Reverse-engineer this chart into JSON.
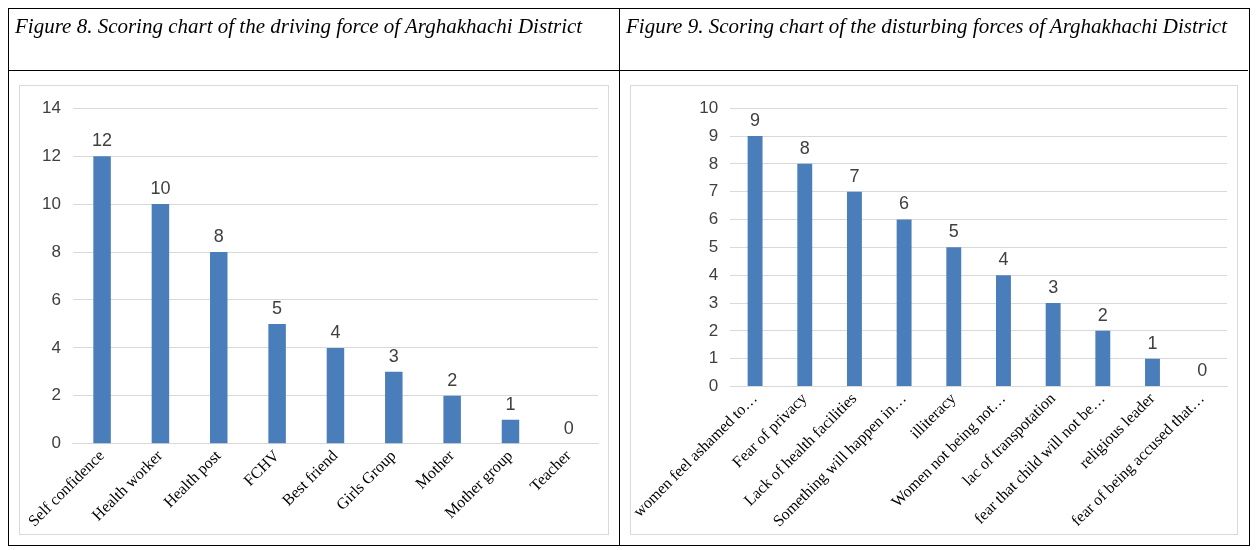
{
  "chart_data": [
    {
      "type": "bar",
      "title": "Figure 8. Scoring chart of the driving force of Arghakhachi District",
      "categories": [
        "Self confidence",
        "Health worker",
        "Health post",
        "FCHV",
        "Best friend",
        "Girls Group",
        "Mother",
        "Mother group",
        "Teacher"
      ],
      "values": [
        12,
        10,
        8,
        5,
        4,
        3,
        2,
        1,
        0
      ],
      "color": "#4a7ebb",
      "ylim": [
        0,
        14
      ],
      "yticks": [
        0,
        2,
        4,
        6,
        8,
        10,
        12,
        14
      ],
      "grid": "y",
      "data_labels": true,
      "legend": false
    },
    {
      "type": "bar",
      "title": "Figure 9. Scoring chart of the disturbing forces of Arghakhachi District",
      "categories": [
        "women feel ashamed to…",
        "Fear of privacy",
        "Lack of health facilities",
        "Something will happen in…",
        "illiteracy",
        "Women not being not…",
        "lac of transpotation",
        "fear that child will not be…",
        "religious leader",
        "fear of being accused that…"
      ],
      "values": [
        9,
        8,
        7,
        6,
        5,
        4,
        3,
        2,
        1,
        0
      ],
      "color": "#4a7ebb",
      "ylim": [
        0,
        10
      ],
      "yticks": [
        0,
        1,
        2,
        3,
        4,
        5,
        6,
        7,
        8,
        9,
        10
      ],
      "grid": "y",
      "data_labels": true,
      "legend": false
    }
  ]
}
